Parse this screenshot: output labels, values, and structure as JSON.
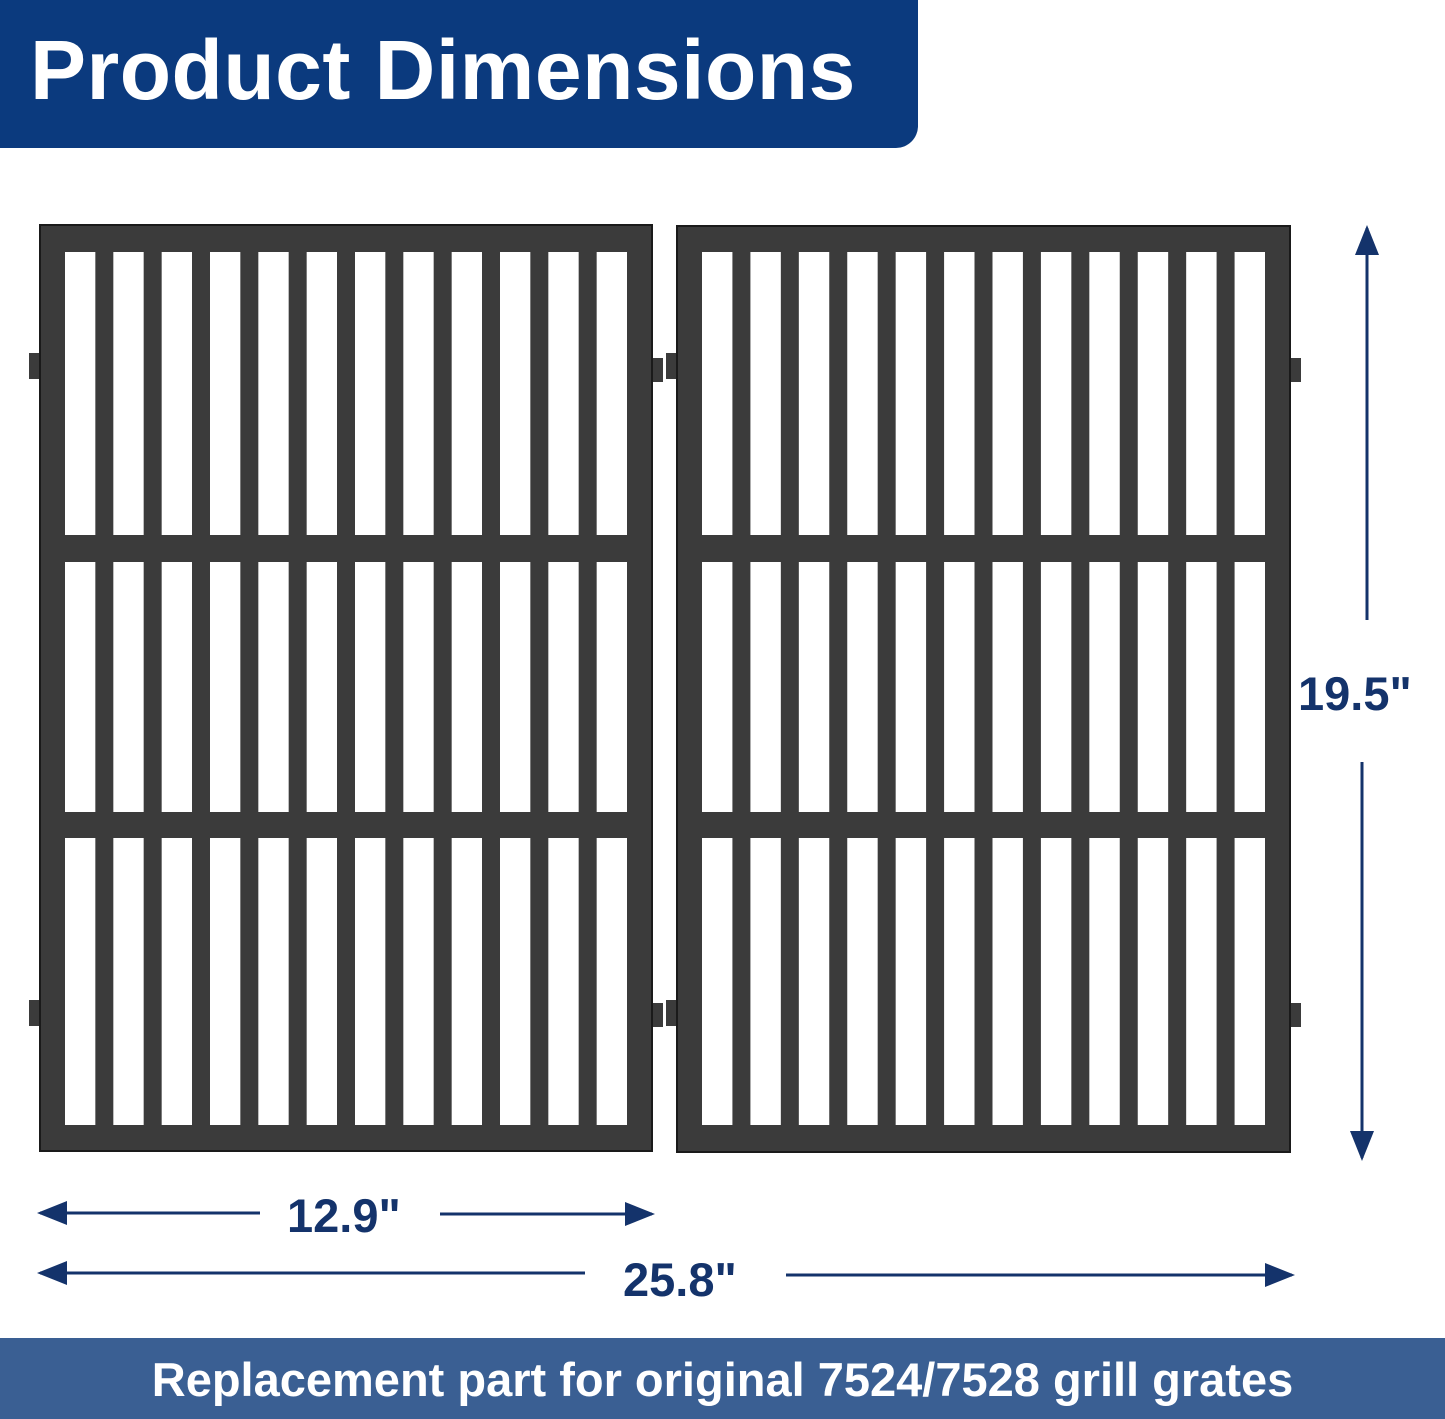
{
  "header": {
    "title": "Product Dimensions"
  },
  "dimensions": {
    "height": "19.5\"",
    "single_width": "12.9\"",
    "total_width": "25.8\""
  },
  "footer": {
    "text": "Replacement part for original 7524/7528 grill grates"
  },
  "product": {
    "grate_count": 2,
    "slots_per_row": 12,
    "rows": 3
  },
  "colors": {
    "header": "#0b3a7e",
    "footer": "#3a5f93",
    "dimension": "#14336b",
    "grate": "#3b3b3b"
  }
}
